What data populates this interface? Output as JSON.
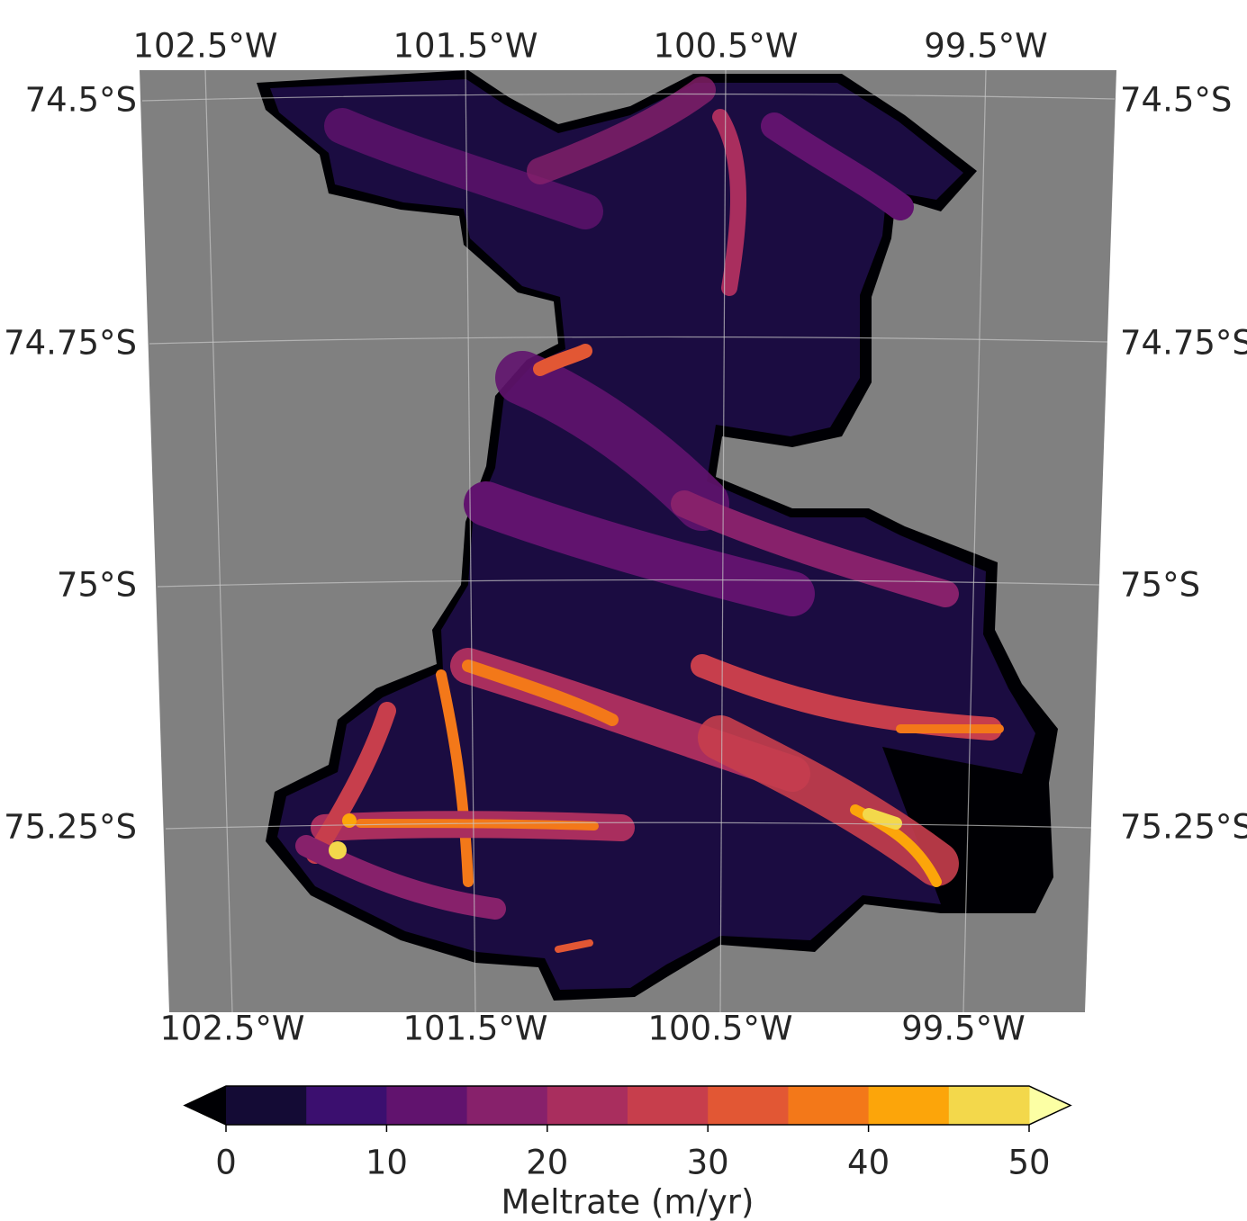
{
  "map": {
    "top_labels": [
      "102.5°W",
      "101.5°W",
      "100.5°W",
      "99.5°W"
    ],
    "bottom_labels": [
      "102.5°W",
      "101.5°W",
      "100.5°W",
      "99.5°W"
    ],
    "left_labels": [
      "74.5°S",
      "74.75°S",
      "75°S",
      "75.25°S"
    ],
    "right_labels": [
      "74.5°S",
      "74.75°S",
      "75°S",
      "75.25°S"
    ]
  },
  "colorbar": {
    "label": "Meltrate (m/yr)",
    "lim": [
      0,
      50
    ],
    "ticks": [
      0,
      10,
      20,
      30,
      40,
      50
    ],
    "levels": [
      0,
      5,
      10,
      15,
      20,
      25,
      30,
      35,
      40,
      45,
      50
    ],
    "colors": [
      "#140b35",
      "#3b0f6f",
      "#61136e",
      "#87216b",
      "#a92e5e",
      "#c73e4c",
      "#e25734",
      "#f37819",
      "#fca50a",
      "#f3d84b"
    ],
    "under_color": "#000004",
    "over_color": "#fcffa4"
  }
}
